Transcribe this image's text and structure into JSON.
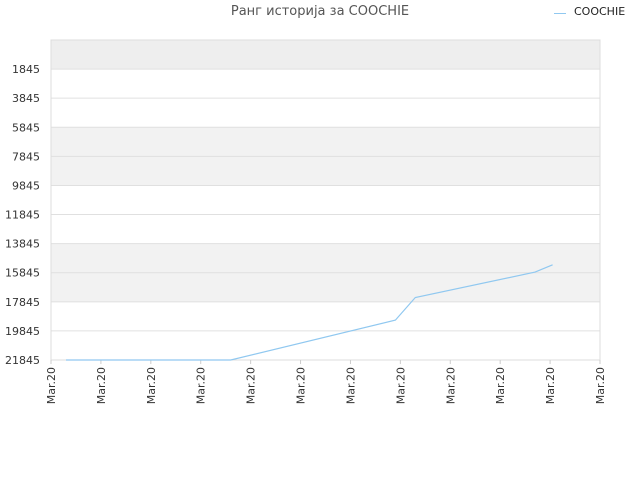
{
  "title": "Ранг историја за COOCHIE",
  "chart_data": {
    "type": "line",
    "title": "Ранг историја за COOCHIE",
    "xlabel": "",
    "ylabel": "",
    "y_inverted": true,
    "ylim": [
      21845,
      -155
    ],
    "yticks": [
      "1845",
      "3845",
      "5845",
      "7845",
      "9845",
      "11845",
      "13845",
      "15845",
      "17845",
      "19845",
      "21845"
    ],
    "ytick_values": [
      1845,
      3845,
      5845,
      7845,
      9845,
      11845,
      13845,
      15845,
      17845,
      19845,
      21845
    ],
    "xticks": [
      "Mar.20",
      "Mar.20",
      "Mar.20",
      "Mar.20",
      "Mar.20",
      "Mar.20",
      "Mar.20",
      "Mar.20",
      "Mar.20",
      "Mar.20",
      "Mar.20",
      "Mar.20"
    ],
    "xlim": [
      0,
      11
    ],
    "grid": true,
    "legend_position": "top-right",
    "series": [
      {
        "name": "COOCHIE",
        "color": "#90c8f0",
        "x": [
          0.3,
          3.6,
          6.9,
          7.3,
          9.7,
          10.05
        ],
        "y": [
          21845,
          21845,
          19100,
          17545,
          15800,
          15300
        ]
      }
    ]
  }
}
